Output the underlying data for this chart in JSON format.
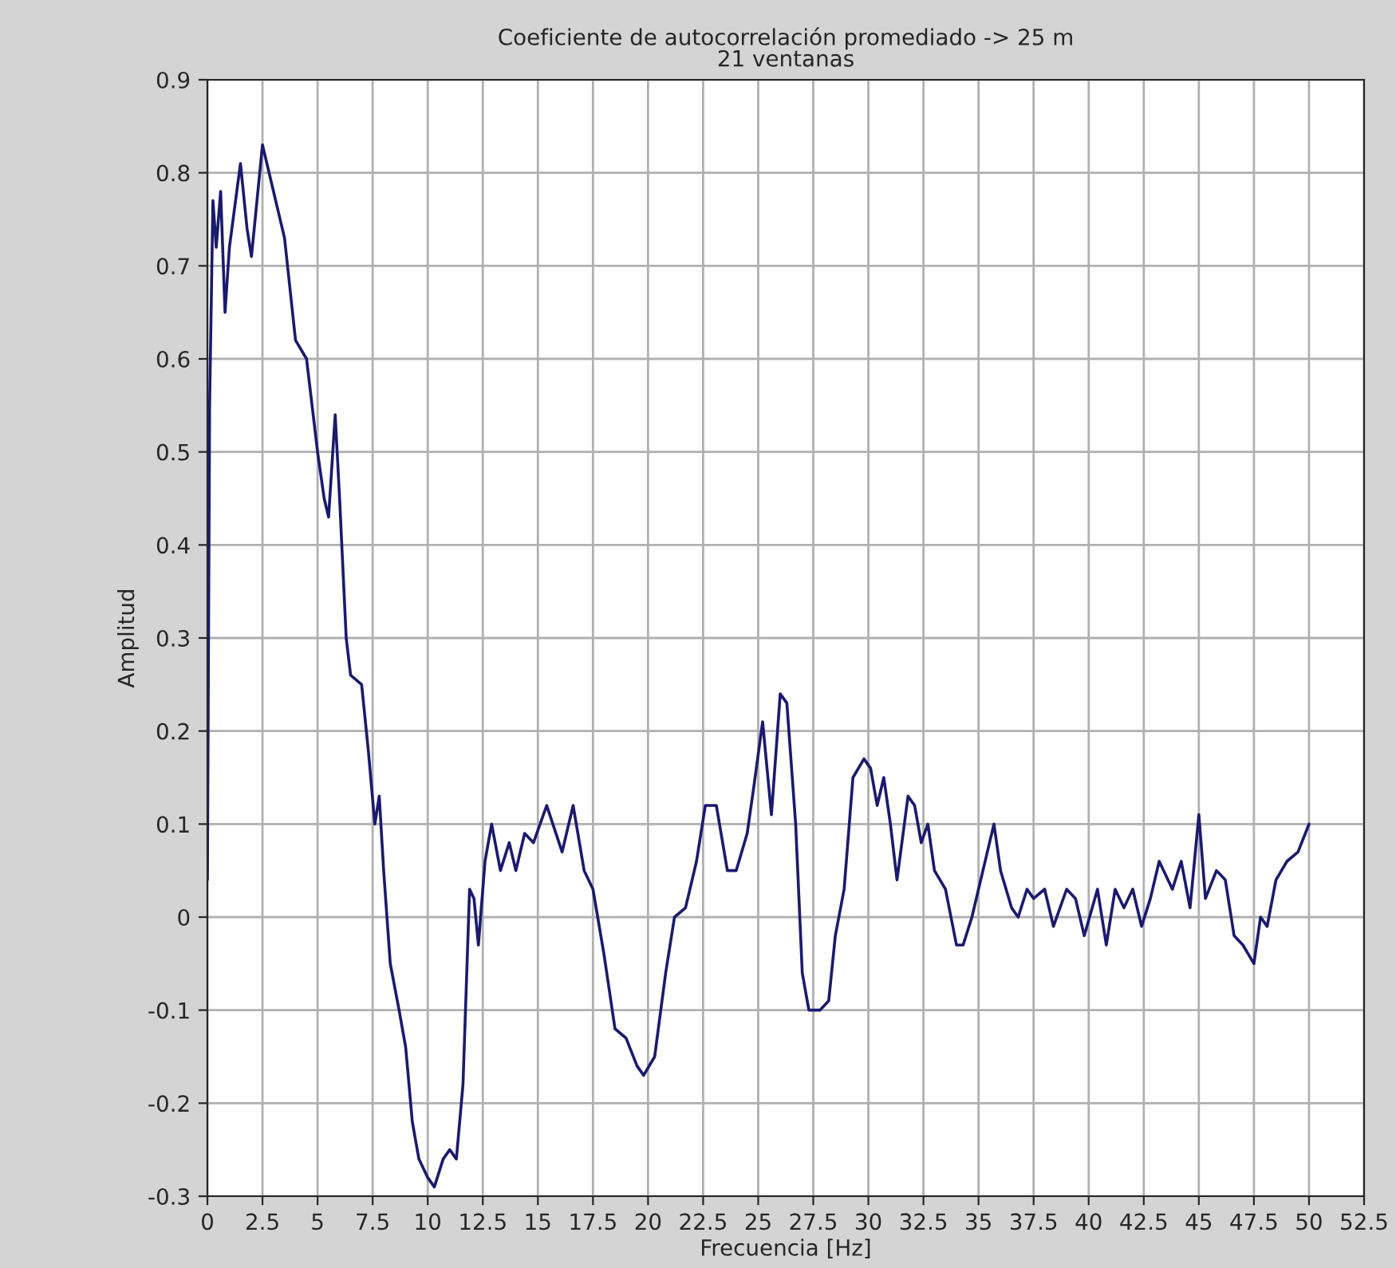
{
  "chart_data": {
    "type": "line",
    "title": "Coeficiente de autocorrelación promediado -> 25 m\n21 ventanas",
    "xlabel": "Frecuencia [Hz]",
    "ylabel": "Amplitud",
    "x": [
      0,
      0.1,
      0.25,
      0.4,
      0.6,
      0.8,
      1.0,
      1.5,
      1.8,
      2.0,
      2.5,
      3.0,
      3.5,
      4.0,
      4.5,
      5.0,
      5.3,
      5.5,
      5.8,
      6.0,
      6.3,
      6.5,
      7.0,
      7.3,
      7.6,
      7.8,
      8.0,
      8.3,
      8.7,
      9.0,
      9.3,
      9.6,
      10.0,
      10.3,
      10.7,
      11.0,
      11.3,
      11.6,
      11.9,
      12.1,
      12.3,
      12.6,
      12.9,
      13.3,
      13.7,
      14.0,
      14.4,
      14.8,
      15.4,
      16.1,
      16.6,
      17.1,
      17.5,
      18.0,
      18.5,
      19.0,
      19.5,
      19.8,
      20.3,
      20.8,
      21.2,
      21.7,
      22.2,
      22.6,
      23.1,
      23.6,
      24.0,
      24.5,
      24.8,
      25.2,
      25.6,
      26.0,
      26.3,
      26.7,
      27.0,
      27.3,
      27.8,
      28.2,
      28.5,
      28.9,
      29.3,
      29.8,
      30.1,
      30.4,
      30.7,
      31.0,
      31.3,
      31.8,
      32.1,
      32.4,
      32.7,
      33.0,
      33.5,
      34.0,
      34.3,
      34.7,
      35.2,
      35.7,
      36.0,
      36.5,
      36.8,
      37.2,
      37.5,
      38.0,
      38.4,
      39.0,
      39.4,
      39.8,
      40.4,
      40.8,
      41.2,
      41.6,
      42.0,
      42.4,
      42.8,
      43.2,
      43.8,
      44.2,
      44.6,
      45.0,
      45.3,
      45.8,
      46.2,
      46.6,
      47.0,
      47.5,
      47.8,
      48.1,
      48.5,
      49.0,
      49.5,
      50.0
    ],
    "series": [
      {
        "color": "#1a1a6e",
        "values": [
          0.04,
          0.55,
          0.77,
          0.72,
          0.78,
          0.65,
          0.72,
          0.81,
          0.74,
          0.71,
          0.83,
          0.78,
          0.73,
          0.62,
          0.6,
          0.5,
          0.45,
          0.43,
          0.54,
          0.45,
          0.3,
          0.26,
          0.25,
          0.18,
          0.1,
          0.13,
          0.05,
          -0.05,
          -0.1,
          -0.14,
          -0.22,
          -0.26,
          -0.28,
          -0.29,
          -0.26,
          -0.25,
          -0.26,
          -0.18,
          0.03,
          0.02,
          -0.03,
          0.06,
          0.1,
          0.05,
          0.08,
          0.05,
          0.09,
          0.08,
          0.12,
          0.07,
          0.12,
          0.05,
          0.03,
          -0.04,
          -0.12,
          -0.13,
          -0.16,
          -0.17,
          -0.15,
          -0.06,
          0.0,
          0.01,
          0.06,
          0.12,
          0.12,
          0.05,
          0.05,
          0.09,
          0.14,
          0.21,
          0.11,
          0.24,
          0.23,
          0.1,
          -0.06,
          -0.1,
          -0.1,
          -0.09,
          -0.02,
          0.03,
          0.15,
          0.17,
          0.16,
          0.12,
          0.15,
          0.1,
          0.04,
          0.13,
          0.12,
          0.08,
          0.1,
          0.05,
          0.03,
          -0.03,
          -0.03,
          0.0,
          0.05,
          0.1,
          0.05,
          0.01,
          0.0,
          0.03,
          0.02,
          0.03,
          -0.01,
          0.03,
          0.02,
          -0.02,
          0.03,
          -0.03,
          0.03,
          0.01,
          0.03,
          -0.01,
          0.02,
          0.06,
          0.03,
          0.06,
          0.01,
          0.11,
          0.02,
          0.05,
          0.04,
          -0.02,
          -0.03,
          -0.05,
          0.0,
          -0.01,
          0.04,
          0.06,
          0.07,
          0.1
        ]
      }
    ],
    "xlim": [
      0,
      52.5
    ],
    "xticks": [
      0,
      2.5,
      5,
      7.5,
      10,
      12.5,
      15,
      17.5,
      20,
      22.5,
      25,
      27.5,
      30,
      32.5,
      35,
      37.5,
      40,
      42.5,
      45,
      47.5,
      50,
      52.5
    ],
    "ylim": [
      -0.3,
      0.9
    ],
    "yticks": [
      -0.3,
      -0.2,
      -0.1,
      0,
      0.1,
      0.2,
      0.3,
      0.4,
      0.5,
      0.6,
      0.7,
      0.8,
      0.9
    ],
    "grid": true,
    "marker": "none",
    "line_style": "solid"
  }
}
